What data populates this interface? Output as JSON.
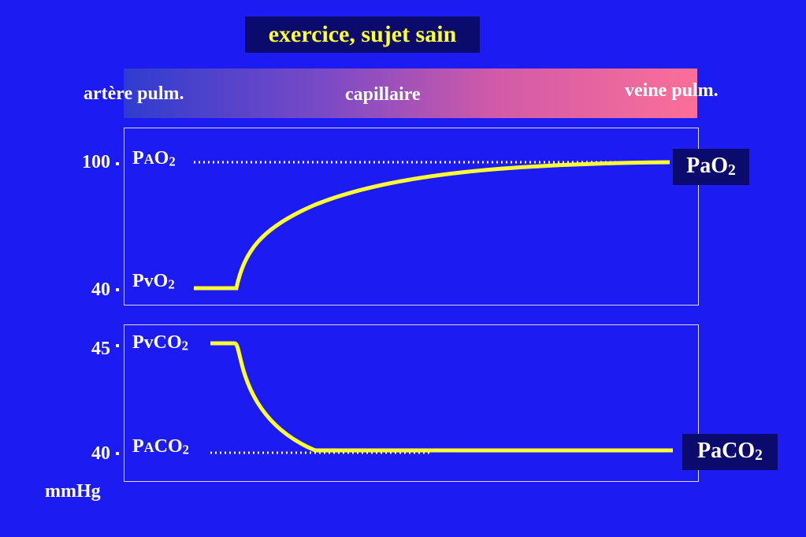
{
  "title": "exercice, sujet sain",
  "header": {
    "left": "artère pulm.",
    "center": "capillaire",
    "right": "veine pulm."
  },
  "top_panel": {
    "ticks": [
      "100",
      "40"
    ],
    "alveolar_label": {
      "main": "P",
      "small": "A",
      "tail": "O",
      "sub": "2"
    },
    "venous_label": {
      "main": "PvO",
      "sub": "2"
    },
    "end_box": {
      "main": "PaO",
      "sub": "2"
    }
  },
  "bottom_panel": {
    "ticks": [
      "45",
      "40"
    ],
    "venous_label": {
      "main": "PvCO",
      "sub": "2"
    },
    "alveolar_label": {
      "main": "P",
      "small": "A",
      "tail": "CO",
      "sub": "2"
    },
    "end_box": {
      "main": "PaCO",
      "sub": "2"
    }
  },
  "unit": "mmHg",
  "colors": {
    "background": "#1c1cf2",
    "title_text": "#ffff33",
    "curve": "#ffff33",
    "box_fill": "#0b0b6e"
  }
}
